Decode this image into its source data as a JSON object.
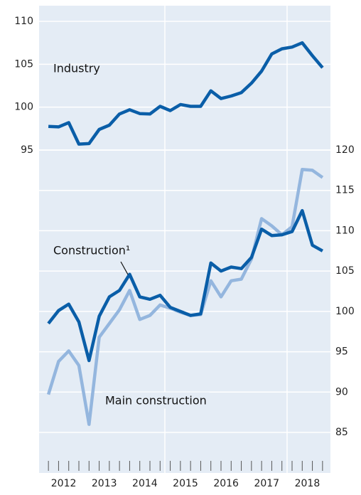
{
  "chart_data": [
    {
      "type": "line",
      "axis_side": "left",
      "x": [
        2012.125,
        2012.375,
        2012.625,
        2012.875,
        2013.125,
        2013.375,
        2013.625,
        2013.875,
        2014.125,
        2014.375,
        2014.625,
        2014.875,
        2015.125,
        2015.375,
        2015.625,
        2015.875,
        2016.125,
        2016.375,
        2016.625,
        2016.875,
        2017.125,
        2017.375,
        2017.625,
        2017.875,
        2018.125,
        2018.375,
        2018.625,
        2018.875
      ],
      "xlim": [
        2012,
        2019
      ],
      "ylim": [
        95,
        110
      ],
      "yticks": [
        95,
        100,
        105,
        110
      ],
      "grid": true,
      "series": [
        {
          "name": "Industry",
          "color": "#0a5ea8",
          "values": [
            97.75,
            97.7,
            98.2,
            95.7,
            95.75,
            97.4,
            97.9,
            99.2,
            99.7,
            99.25,
            99.2,
            100.1,
            99.6,
            100.3,
            100.1,
            100.1,
            101.9,
            101.0,
            101.3,
            101.7,
            102.8,
            104.2,
            106.2,
            106.8,
            107.0,
            107.5,
            106.0,
            104.6
          ]
        }
      ]
    },
    {
      "type": "line",
      "axis_side": "right",
      "x": [
        2012.125,
        2012.375,
        2012.625,
        2012.875,
        2013.125,
        2013.375,
        2013.625,
        2013.875,
        2014.125,
        2014.375,
        2014.625,
        2014.875,
        2015.125,
        2015.375,
        2015.625,
        2015.875,
        2016.125,
        2016.375,
        2016.625,
        2016.875,
        2017.125,
        2017.375,
        2017.625,
        2017.875,
        2018.125,
        2018.375,
        2018.625,
        2018.875
      ],
      "xlim": [
        2012,
        2019
      ],
      "xticks": [
        {
          "value": 2012.5,
          "label": "2012"
        },
        {
          "value": 2013.5,
          "label": "2013"
        },
        {
          "value": 2014.5,
          "label": "2014"
        },
        {
          "value": 2015.5,
          "label": "2015"
        },
        {
          "value": 2016.5,
          "label": "2016"
        },
        {
          "value": 2017.5,
          "label": "2017"
        },
        {
          "value": 2018.5,
          "label": "2018"
        }
      ],
      "ylim": [
        85,
        120
      ],
      "yticks": [
        85,
        90,
        95,
        100,
        105,
        110,
        115,
        120
      ],
      "grid": true,
      "series": [
        {
          "name": "Main construction",
          "color": "#94b6de",
          "values": [
            89.7,
            93.8,
            95.1,
            93.3,
            86.0,
            96.8,
            98.5,
            100.2,
            102.6,
            99.0,
            99.5,
            100.8,
            100.4,
            99.9,
            99.5,
            99.6,
            103.8,
            101.8,
            103.8,
            104.0,
            106.5,
            111.5,
            110.6,
            109.5,
            110.5,
            117.6,
            117.5,
            116.6
          ]
        },
        {
          "name": "Construction¹",
          "color": "#0a5ea8",
          "values": [
            98.5,
            100.1,
            100.9,
            98.7,
            93.9,
            99.4,
            101.8,
            102.6,
            104.6,
            101.8,
            101.5,
            102.0,
            100.5,
            100.0,
            99.5,
            99.7,
            106.0,
            105.0,
            105.5,
            105.3,
            106.7,
            110.2,
            109.4,
            109.5,
            109.9,
            112.5,
            108.2,
            107.5
          ]
        }
      ]
    }
  ]
}
